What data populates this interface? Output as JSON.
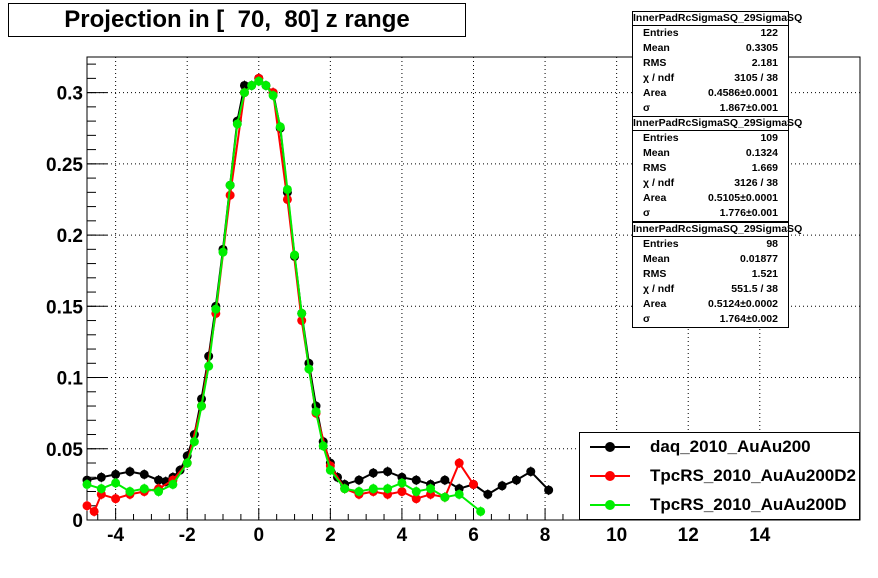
{
  "title": "Projection in [  70,  80] z range",
  "colors": {
    "daq": "#000000",
    "rs2": "#ff0000",
    "rs": "#00ee00",
    "tick": "#000000"
  },
  "stats_boxes": [
    {
      "name": "InnerPadRcSigmaSQ_29SigmaSQ",
      "rows": [
        {
          "label": "Entries",
          "value": "122"
        },
        {
          "label": "Mean",
          "value": "0.3305"
        },
        {
          "label": "RMS",
          "value": "2.181"
        },
        {
          "label": "χ  / ndf",
          "value": "3105 / 38"
        },
        {
          "label": "Area",
          "value": "0.4586±0.0001"
        },
        {
          "label": "σ",
          "value": "1.867±0.001"
        }
      ]
    },
    {
      "name": "InnerPadRcSigmaSQ_29SigmaSQ",
      "rows": [
        {
          "label": "Entries",
          "value": "109"
        },
        {
          "label": "Mean",
          "value": "0.1324"
        },
        {
          "label": "RMS",
          "value": "1.669"
        },
        {
          "label": "χ  / ndf",
          "value": "3126 / 38"
        },
        {
          "label": "Area",
          "value": "0.5105±0.0001"
        },
        {
          "label": "σ",
          "value": "1.776±0.001"
        }
      ]
    },
    {
      "name": "InnerPadRcSigmaSQ_29SigmaSQ",
      "rows": [
        {
          "label": "Entries",
          "value": "98"
        },
        {
          "label": "Mean",
          "value": "0.01877"
        },
        {
          "label": "RMS",
          "value": "1.521"
        },
        {
          "label": "χ  / ndf",
          "value": "551.5 / 38"
        },
        {
          "label": "Area",
          "value": "0.5124±0.0002"
        },
        {
          "label": "σ",
          "value": "1.764±0.002"
        }
      ]
    }
  ],
  "legend": [
    {
      "label": "daq_2010_AuAu200",
      "color": "#000000"
    },
    {
      "label": "TpcRS_2010_AuAu200D2",
      "color": "#ff0000"
    },
    {
      "label": "TpcRS_2010_AuAu200D",
      "color": "#00ee00"
    }
  ],
  "chart_data": {
    "type": "scatter",
    "title": "Projection in [  70,  80] z range",
    "xlim": [
      -4.8,
      16.8
    ],
    "ylim": [
      0,
      0.325
    ],
    "grid": true,
    "x_ticks": [
      -4,
      -2,
      0,
      2,
      4,
      6,
      8,
      10,
      12,
      14
    ],
    "x_tick_labels": [
      "-4",
      "-2",
      "0",
      "2",
      "4",
      "6",
      "8",
      "10",
      "12",
      "14"
    ],
    "y_ticks": [
      0,
      0.05,
      0.1,
      0.15,
      0.2,
      0.25,
      0.3
    ],
    "y_tick_labels": [
      "0",
      "0.05",
      "0.1",
      "0.15",
      "0.2",
      "0.25",
      "0.3"
    ],
    "legend_position": "bottom-right",
    "series": [
      {
        "name": "daq_2010_AuAu200",
        "color": "#000000",
        "x": [
          -4.8,
          -4.4,
          -4.0,
          -3.6,
          -3.2,
          -2.8,
          -2.6,
          -2.4,
          -2.2,
          -2.0,
          -1.8,
          -1.6,
          -1.4,
          -1.2,
          -1.0,
          -0.8,
          -0.6,
          -0.4,
          -0.2,
          0.0,
          0.2,
          0.4,
          0.6,
          0.8,
          1.0,
          1.2,
          1.4,
          1.6,
          1.8,
          2.0,
          2.2,
          2.4,
          2.8,
          3.2,
          3.6,
          4.0,
          4.4,
          4.8,
          5.2,
          5.6,
          6.0,
          6.4,
          6.8,
          7.2,
          7.6,
          8.1
        ],
        "y": [
          0.028,
          0.03,
          0.032,
          0.034,
          0.032,
          0.028,
          0.027,
          0.03,
          0.035,
          0.045,
          0.06,
          0.085,
          0.115,
          0.15,
          0.19,
          0.235,
          0.28,
          0.305,
          0.305,
          0.31,
          0.305,
          0.3,
          0.275,
          0.23,
          0.185,
          0.145,
          0.11,
          0.08,
          0.055,
          0.04,
          0.03,
          0.025,
          0.028,
          0.033,
          0.034,
          0.03,
          0.028,
          0.025,
          0.028,
          0.022,
          0.025,
          0.018,
          0.024,
          0.028,
          0.034,
          0.021
        ]
      },
      {
        "name": "TpcRS_2010_AuAu200D2",
        "color": "#ff0000",
        "x": [
          -4.8,
          -4.6,
          -4.4,
          -4.0,
          -3.6,
          -3.2,
          -2.8,
          -2.4,
          -2.0,
          -1.6,
          -1.2,
          -0.8,
          -0.4,
          0.0,
          0.4,
          0.8,
          1.2,
          1.6,
          2.0,
          2.4,
          2.8,
          3.2,
          3.6,
          4.0,
          4.4,
          4.8,
          5.2,
          5.6,
          6.0
        ],
        "y": [
          0.01,
          0.006,
          0.018,
          0.015,
          0.018,
          0.02,
          0.022,
          0.028,
          0.04,
          0.08,
          0.145,
          0.228,
          0.3,
          0.31,
          0.3,
          0.225,
          0.14,
          0.075,
          0.038,
          0.022,
          0.018,
          0.02,
          0.018,
          0.02,
          0.015,
          0.018,
          0.016,
          0.04,
          0.025
        ]
      },
      {
        "name": "TpcRS_2010_AuAu200D",
        "color": "#00ee00",
        "x": [
          -4.8,
          -4.4,
          -4.0,
          -3.6,
          -3.2,
          -2.8,
          -2.4,
          -2.0,
          -1.8,
          -1.6,
          -1.4,
          -1.2,
          -1.0,
          -0.8,
          -0.6,
          -0.4,
          -0.2,
          0.0,
          0.2,
          0.4,
          0.6,
          0.8,
          1.0,
          1.2,
          1.4,
          1.6,
          1.8,
          2.0,
          2.4,
          2.8,
          3.2,
          3.6,
          4.0,
          4.4,
          4.8,
          5.2,
          5.6,
          6.2
        ],
        "y": [
          0.025,
          0.022,
          0.026,
          0.02,
          0.022,
          0.02,
          0.025,
          0.04,
          0.055,
          0.08,
          0.108,
          0.148,
          0.188,
          0.235,
          0.278,
          0.3,
          0.305,
          0.308,
          0.305,
          0.298,
          0.276,
          0.232,
          0.186,
          0.145,
          0.106,
          0.076,
          0.052,
          0.035,
          0.022,
          0.02,
          0.022,
          0.022,
          0.026,
          0.02,
          0.022,
          0.016,
          0.018,
          0.006
        ]
      }
    ]
  }
}
